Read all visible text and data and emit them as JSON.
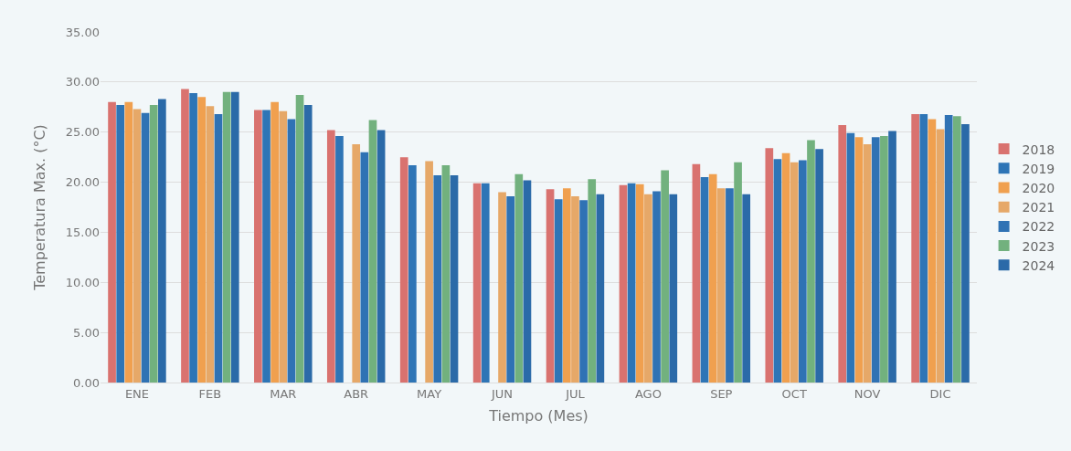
{
  "chart_data": {
    "type": "bar",
    "xlabel": "Tiempo (Mes)",
    "ylabel": "Temperatura Max. (°C)",
    "categories": [
      "ENE",
      "FEB",
      "MAR",
      "ABR",
      "MAY",
      "JUN",
      "JUL",
      "AGO",
      "SEP",
      "OCT",
      "NOV",
      "DIC"
    ],
    "series": [
      {
        "name": "2018",
        "color": "#d9726f",
        "values": [
          28.0,
          29.3,
          27.2,
          25.2,
          22.5,
          19.9,
          19.3,
          19.7,
          21.8,
          23.4,
          25.7,
          26.8
        ]
      },
      {
        "name": "2019",
        "color": "#2e75b6",
        "values": [
          27.7,
          28.9,
          27.2,
          24.6,
          21.7,
          19.9,
          18.3,
          19.9,
          20.5,
          22.3,
          24.9,
          26.8
        ]
      },
      {
        "name": "2020",
        "color": "#f0a04f",
        "values": [
          28.0,
          28.5,
          28.0,
          null,
          null,
          null,
          19.4,
          19.8,
          20.8,
          22.9,
          24.5,
          26.3
        ]
      },
      {
        "name": "2021",
        "color": "#e6a868",
        "values": [
          27.3,
          27.6,
          27.1,
          23.8,
          22.1,
          19.0,
          18.6,
          18.8,
          19.4,
          22.0,
          23.8,
          25.3
        ]
      },
      {
        "name": "2022",
        "color": "#2f72b4",
        "values": [
          26.9,
          26.8,
          26.3,
          23.0,
          20.7,
          18.6,
          18.2,
          19.1,
          19.4,
          22.2,
          24.5,
          26.7
        ]
      },
      {
        "name": "2023",
        "color": "#72b17e",
        "values": [
          27.7,
          29.0,
          28.7,
          26.2,
          21.7,
          20.8,
          20.3,
          21.2,
          22.0,
          24.2,
          24.6,
          26.6
        ]
      },
      {
        "name": "2024",
        "color": "#2b6aa8",
        "values": [
          28.3,
          29.0,
          27.7,
          25.2,
          20.7,
          20.2,
          18.8,
          18.8,
          18.8,
          23.3,
          25.1,
          25.8
        ]
      }
    ],
    "ylim": [
      0,
      35
    ],
    "yticks": [
      {
        "value": 0,
        "label": "0.00"
      },
      {
        "value": 5,
        "label": "5.00"
      },
      {
        "value": 10,
        "label": "10.00"
      },
      {
        "value": 15,
        "label": "15.00"
      },
      {
        "value": 20,
        "label": "20.00"
      },
      {
        "value": 25,
        "label": "25.00"
      },
      {
        "value": 30,
        "label": "30.00"
      },
      {
        "value": 35,
        "label": "35.00"
      }
    ],
    "grid": "y",
    "legend": "right"
  }
}
